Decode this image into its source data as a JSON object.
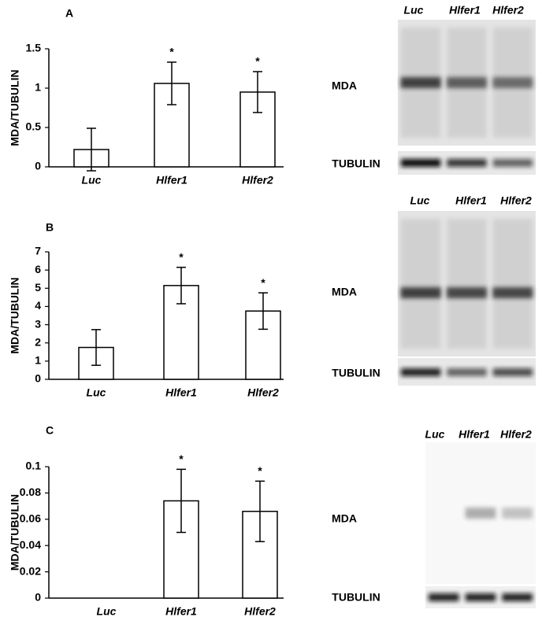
{
  "chart_data": [
    {
      "type": "bar",
      "panel": "A",
      "y_label": "MDA/TUBULIN",
      "categories": [
        "Luc",
        "Hlfer1",
        "Hlfer2"
      ],
      "values": [
        0.22,
        1.06,
        0.95
      ],
      "errors": [
        0.27,
        0.27,
        0.26
      ],
      "annotations": [
        null,
        "*",
        "*"
      ],
      "color": "#ffffff",
      "ylim": [
        0,
        1.5
      ],
      "yticks": [
        0,
        0.5,
        1,
        1.5
      ],
      "blot": {
        "lanes": [
          "Luc",
          "Hlfer1",
          "Hlfer2"
        ],
        "rows": [
          "MDA",
          "TUBULIN"
        ]
      }
    },
    {
      "type": "bar",
      "panel": "B",
      "y_label": "MDA/TUBULIN",
      "categories": [
        "Luc",
        "Hlfer1",
        "Hlfer2"
      ],
      "values": [
        1.75,
        5.15,
        3.75
      ],
      "errors": [
        0.98,
        1.0,
        1.0
      ],
      "annotations": [
        null,
        "*",
        "*"
      ],
      "color": "#ffffff",
      "ylim": [
        0,
        7
      ],
      "yticks": [
        0,
        1,
        2,
        3,
        4,
        5,
        6,
        7
      ],
      "blot": {
        "lanes": [
          "Luc",
          "Hlfer1",
          "Hlfer2"
        ],
        "rows": [
          "MDA",
          "TUBULIN"
        ]
      }
    },
    {
      "type": "bar",
      "panel": "C",
      "y_label": "MDA/TUBULIN",
      "categories": [
        "Luc",
        "Hlfer1",
        "Hlfer2"
      ],
      "values": [
        0,
        0.074,
        0.066
      ],
      "errors": [
        0,
        0.024,
        0.023
      ],
      "annotations": [
        null,
        "*",
        "*"
      ],
      "color": "#ffffff",
      "ylim": [
        0,
        0.1
      ],
      "yticks": [
        0,
        0.02,
        0.04,
        0.06,
        0.08,
        0.1
      ],
      "blot": {
        "lanes": [
          "Luc",
          "Hlfer1",
          "Hlfer2"
        ],
        "rows": [
          "MDA",
          "TUBULIN"
        ]
      }
    }
  ]
}
